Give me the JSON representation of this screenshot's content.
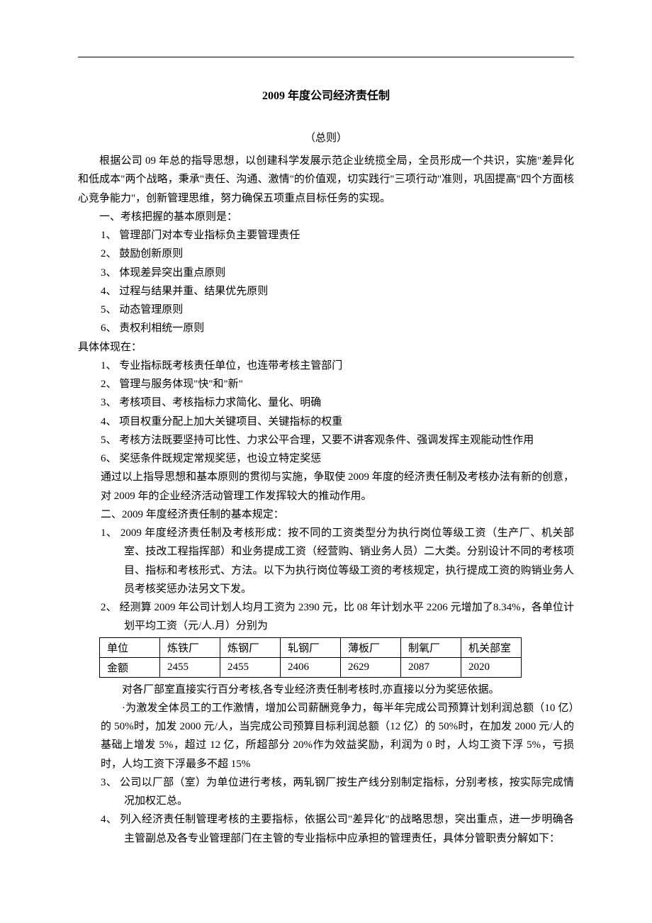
{
  "title": "2009 年度公司经济责任制",
  "subtitle": "（总则）",
  "intro": "根据公司 09 年总的指导思想，以创建科学发展示范企业统揽全局，全员形成一个共识，实施\"差异化和低成本\"两个战略，秉承\"责任、沟通、激情\"的价值观，切实践行\"三项行动\"准则，巩固提高\"四个方面核心竞争能力\"，创新管理思维，努力确保五项重点目标任务的实现。",
  "section1_heading": "一、考核把握的基本原则是：",
  "principles": [
    "1、 管理部门对本专业指标负主要管理责任",
    "2、 鼓励创新原则",
    "3、 体现差异突出重点原则",
    "4、 过程与结果并重、结果优先原则",
    "5、 动态管理原则",
    "6、 责权利相统一原则"
  ],
  "embody_label": "具体体现在：",
  "embody_items": [
    "1、 专业指标既考核责任单位，也连带考核主管部门",
    "2、 管理与服务体现\"快\"和\"新\"",
    "3、 考核项目、考核指标力求简化、量化、明确",
    "4、 项目权重分配上加大关键项目、关键指标的权重",
    "5、 考核方法既要坚持可比性、力求公平合理，又要不讲客观条件、强调发挥主观能动性作用",
    "6、 奖惩条件既规定常规奖惩，也设立特定奖惩"
  ],
  "transition1": "通过以上指导思想和基本原则的贯彻与实施，争取使 2009 年度的经济责任制及考核办法有新的创意，对 2009 年的企业经济活动管理工作发挥较大的推动作用。",
  "section2_heading": "二、2009 年度经济责任制的基本规定：",
  "rule1": "1、 2009 年度经济责任制及考核形成：按不同的工资类型分为执行岗位等级工资（生产厂、机关部室、技改工程指挥部）和业务提成工资（经营购、销业务人员）二大类。分别设计不同的考核项目、指标和考核形式、方法。以下为执行岗位等级工资的考核规定，执行提成工资的购销业务人员考核奖惩办法另文下发。",
  "rule2": "2、 经测算 2009 年公司计划人均月工资为 2390 元，比 08 年计划水平 2206 元增加了8.34%，各单位计划平均工资（元/人.月）分别为",
  "table": {
    "headers": [
      "单位",
      "炼铁厂",
      "炼钢厂",
      "轧钢厂",
      "薄板厂",
      "制氧厂",
      "机关部室"
    ],
    "values": [
      "金额",
      "2455",
      "2455",
      "2406",
      "2629",
      "2087",
      "2020"
    ]
  },
  "after_table1": "对各厂部室直接实行百分考核,各专业经济责任制考核时,亦直接以分为奖惩依据。",
  "after_table2": "·为激发全体员工的工作激情，增加公司薪酬竞争力，每半年完成公司预算计划利润总额（10 亿）的 50%时，加发 2000 元/人，当完成公司预算目标利润总额（12 亿）的 50%时，在加发 2000 元/人的基础上增发 5%，超过 12 亿，所超部分 20%作为效益奖励，利润为 0 时，人均工资下浮 5%，亏损时，人均工资下浮最多不超 15%",
  "rule3": "3、 公司以厂部（室）为单位进行考核，两轧钢厂按生产线分别制定指标，分别考核，按实际完成情况加权汇总。",
  "rule4": "4、 列入经济责任制管理考核的主要指标，依据公司\"差异化\"的战略思想，突出重点，进一步明确各主管副总及各专业管理部门在主管的专业指标中应承担的管理责任，具体分管职责分解如下："
}
